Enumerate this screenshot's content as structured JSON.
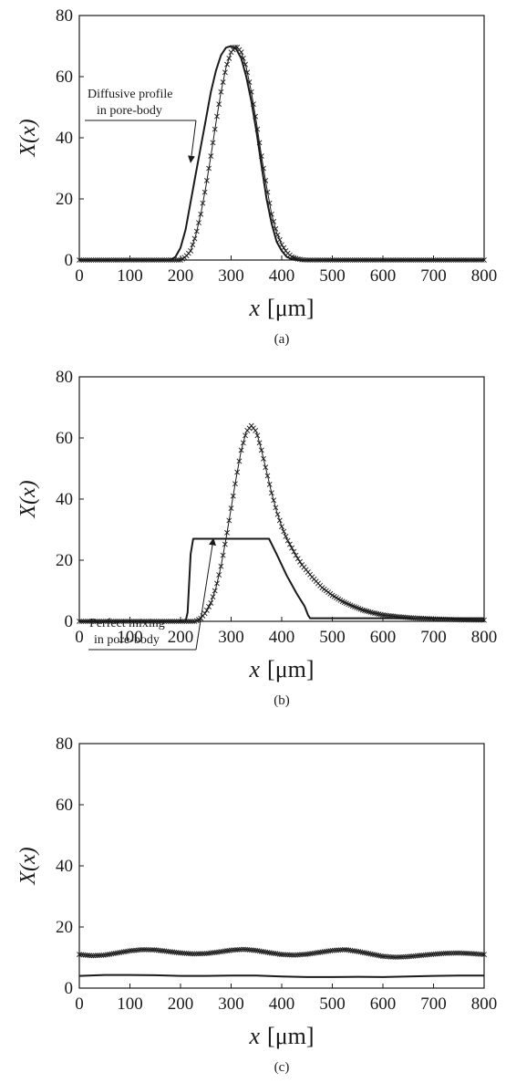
{
  "chart_data": [
    {
      "type": "line",
      "panel_label": "(a)",
      "ylabel": "X(x)",
      "xlabel_var": "x",
      "xlabel_unit": "[μm]",
      "xlim": [
        0,
        800
      ],
      "ylim": [
        0,
        80
      ],
      "xticks": [
        0,
        100,
        200,
        300,
        400,
        500,
        600,
        700,
        800
      ],
      "yticks": [
        0,
        20,
        40,
        60,
        80
      ],
      "annotation": {
        "lines": [
          "Diffusive profile",
          "in pore-body"
        ],
        "arrow_to": [
          220,
          32
        ]
      },
      "series": [
        {
          "style": "solid-line",
          "x": [
            0,
            180,
            190,
            200,
            210,
            220,
            230,
            240,
            250,
            260,
            270,
            280,
            290,
            300,
            310,
            320,
            330,
            340,
            350,
            360,
            370,
            380,
            390,
            400,
            410,
            420,
            430,
            800
          ],
          "values": [
            0,
            0,
            1,
            4,
            10,
            19,
            28,
            37,
            46,
            55,
            62,
            67,
            69.5,
            70,
            69,
            66,
            60,
            52,
            42,
            31,
            20,
            12,
            6,
            3,
            1,
            0.3,
            0,
            0
          ]
        },
        {
          "style": "x-markers",
          "x": [
            0,
            200,
            210,
            220,
            230,
            240,
            250,
            260,
            270,
            280,
            290,
            300,
            310,
            320,
            330,
            340,
            350,
            360,
            370,
            380,
            390,
            400,
            410,
            420,
            430,
            440,
            450,
            800
          ],
          "values": [
            0,
            0,
            1,
            3,
            8,
            15,
            24,
            34,
            45,
            55,
            63,
            68,
            70,
            68,
            63,
            55,
            45,
            34,
            24,
            15,
            9,
            5,
            2.5,
            1,
            0.4,
            0.1,
            0,
            0
          ]
        }
      ]
    },
    {
      "type": "line",
      "panel_label": "(b)",
      "ylabel": "X(x)",
      "xlabel_var": "x",
      "xlabel_unit": "[μm]",
      "xlim": [
        0,
        800
      ],
      "ylim": [
        0,
        80
      ],
      "xticks": [
        0,
        100,
        200,
        300,
        400,
        500,
        600,
        700,
        800
      ],
      "yticks": [
        0,
        20,
        40,
        60,
        80
      ],
      "annotation": {
        "lines": [
          "Perfect mixing",
          "in pore-body"
        ],
        "arrow_to": [
          265,
          27
        ]
      },
      "series": [
        {
          "style": "solid-line",
          "x": [
            0,
            210,
            214,
            220,
            225,
            375,
            390,
            410,
            430,
            445,
            452,
            456,
            800
          ],
          "values": [
            0,
            0,
            3,
            22,
            27,
            27,
            22,
            15,
            9,
            5,
            2,
            1,
            1
          ]
        },
        {
          "style": "x-markers",
          "x": [
            0,
            230,
            240,
            250,
            260,
            270,
            280,
            290,
            300,
            310,
            320,
            330,
            340,
            350,
            360,
            370,
            380,
            390,
            400,
            410,
            420,
            430,
            440,
            450,
            460,
            480,
            500,
            520,
            540,
            560,
            580,
            600,
            630,
            660,
            700,
            750,
            800
          ],
          "values": [
            0,
            0,
            1,
            3,
            6,
            11,
            18,
            27,
            37,
            47,
            56,
            62,
            64,
            62,
            56,
            49,
            42,
            36,
            31,
            27,
            24,
            21,
            18.5,
            16.5,
            14.5,
            11,
            8.5,
            6.5,
            5,
            3.7,
            2.8,
            2.1,
            1.5,
            1.1,
            0.8,
            0.5,
            0.4
          ]
        }
      ]
    },
    {
      "type": "line",
      "panel_label": "(c)",
      "ylabel": "X(x)",
      "xlabel_var": "x",
      "xlabel_unit": "[μm]",
      "xlim": [
        0,
        800
      ],
      "ylim": [
        0,
        80
      ],
      "xticks": [
        0,
        100,
        200,
        300,
        400,
        500,
        600,
        700,
        800
      ],
      "yticks": [
        0,
        20,
        40,
        60,
        80
      ],
      "series": [
        {
          "style": "solid-line",
          "x": [
            0,
            50,
            100,
            150,
            200,
            250,
            300,
            350,
            400,
            450,
            500,
            550,
            600,
            650,
            700,
            750,
            800
          ],
          "values": [
            4,
            4.3,
            4.3,
            4.2,
            4,
            4,
            4.1,
            4.1,
            3.8,
            3.6,
            3.6,
            3.7,
            3.6,
            3.8,
            4,
            4.1,
            4.1
          ]
        },
        {
          "style": "x-markers",
          "x": [
            0,
            25,
            50,
            75,
            100,
            125,
            150,
            175,
            200,
            225,
            250,
            275,
            300,
            325,
            350,
            375,
            400,
            425,
            450,
            475,
            500,
            525,
            550,
            575,
            600,
            625,
            650,
            675,
            700,
            725,
            750,
            775,
            800
          ],
          "values": [
            11,
            10.6,
            10.8,
            11.5,
            12.2,
            12.6,
            12.5,
            12.0,
            11.5,
            11.2,
            11.3,
            11.8,
            12.4,
            12.7,
            12.3,
            11.6,
            11.0,
            10.8,
            11.1,
            11.7,
            12.3,
            12.6,
            12.0,
            11.2,
            10.4,
            10.1,
            10.3,
            10.7,
            11.1,
            11.4,
            11.5,
            11.3,
            11.0
          ]
        }
      ]
    }
  ]
}
